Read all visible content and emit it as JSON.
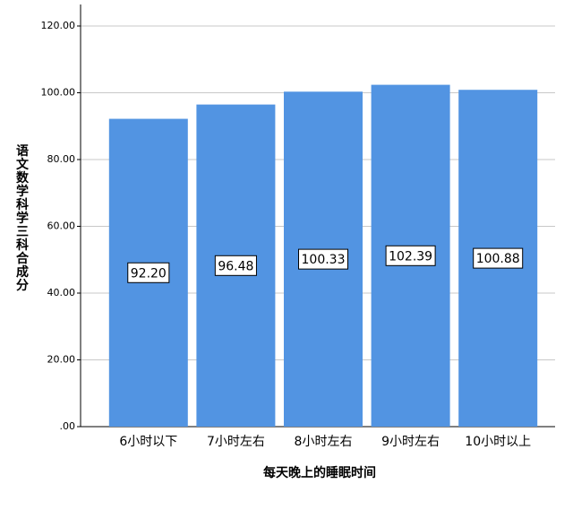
{
  "chart_data": {
    "type": "bar",
    "x_label": "每天晚上的睡眠时间",
    "y_label": "语文数学科学三科合成分",
    "categories": [
      "6小时以下",
      "7小时左右",
      "8小时左右",
      "9小时左右",
      "10小时以上"
    ],
    "values": [
      92.2,
      96.48,
      100.33,
      102.39,
      100.88
    ],
    "value_labels": [
      "92.20",
      "96.48",
      "100.33",
      "102.39",
      "100.88"
    ],
    "color": "#5294e2",
    "ylim": [
      0,
      120
    ],
    "yticks": [
      {
        "value": 0,
        "label": ".00"
      },
      {
        "value": 20,
        "label": "20.00"
      },
      {
        "value": 40,
        "label": "40.00"
      },
      {
        "value": 60,
        "label": "60.00"
      },
      {
        "value": 80,
        "label": "80.00"
      },
      {
        "value": 100,
        "label": "100.00"
      },
      {
        "value": 120,
        "label": "120.00"
      }
    ],
    "grid": true
  }
}
